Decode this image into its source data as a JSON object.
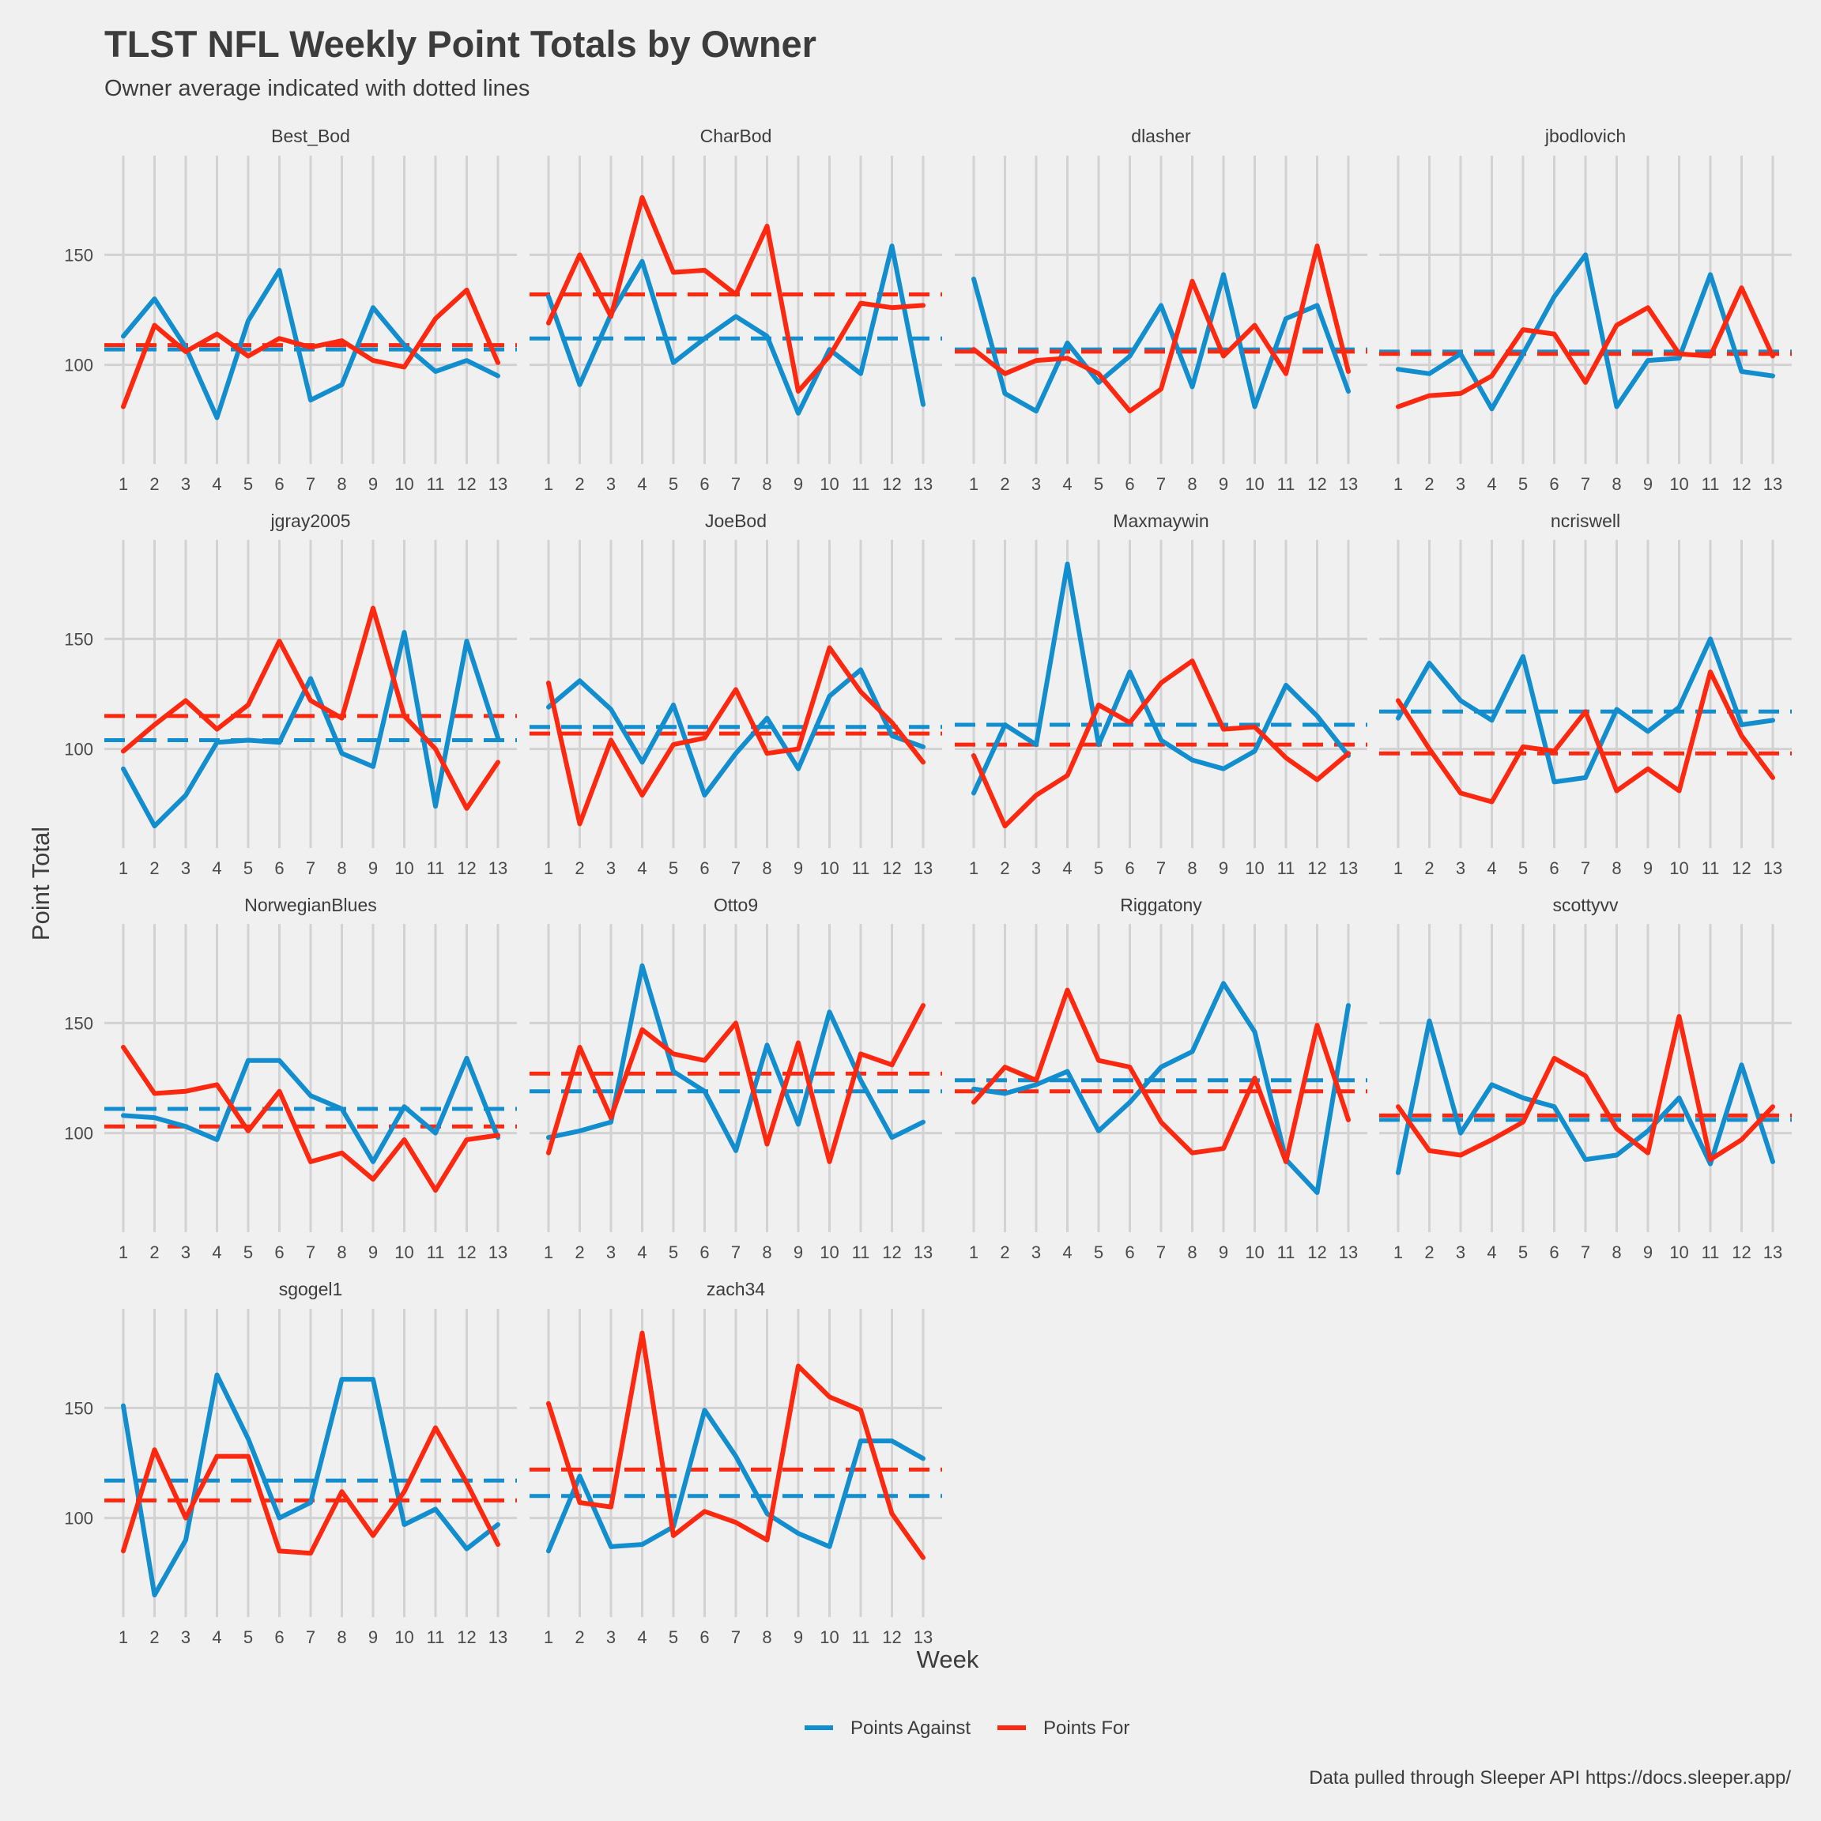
{
  "title": "TLST NFL Weekly Point Totals by Owner",
  "subtitle": "Owner average indicated with dotted lines",
  "caption": "Data pulled through Sleeper API https://docs.sleeper.app/",
  "chart_data": {
    "type": "line",
    "facet_columns": 4,
    "xlabel": "Week",
    "ylabel": "Point Total",
    "x": [
      1,
      2,
      3,
      4,
      5,
      6,
      7,
      8,
      9,
      10,
      11,
      12,
      13
    ],
    "ylim": [
      55,
      195
    ],
    "yticks": [
      100,
      150
    ],
    "grid": true,
    "legend_position": "bottom",
    "series_meta": [
      {
        "key": "against",
        "name": "Points Against",
        "color": "#128dcd"
      },
      {
        "key": "for",
        "name": "Points For",
        "color": "#fc2910"
      }
    ],
    "panels": [
      {
        "owner": "Best_Bod",
        "against": [
          113,
          130,
          108,
          76,
          120,
          143,
          84,
          91,
          126,
          109,
          97,
          102,
          95
        ],
        "for": [
          81,
          118,
          106,
          114,
          104,
          112,
          108,
          111,
          102,
          99,
          121,
          134,
          101
        ],
        "avg_against": 107,
        "avg_for": 109
      },
      {
        "owner": "CharBod",
        "against": [
          131,
          91,
          123,
          147,
          101,
          112,
          122,
          113,
          78,
          107,
          96,
          154,
          82
        ],
        "for": [
          119,
          150,
          122,
          176,
          142,
          143,
          132,
          163,
          88,
          104,
          128,
          126,
          127
        ],
        "avg_against": 112,
        "avg_for": 132
      },
      {
        "owner": "dlasher",
        "against": [
          139,
          87,
          79,
          110,
          92,
          104,
          127,
          90,
          141,
          81,
          121,
          127,
          88
        ],
        "for": [
          107,
          96,
          102,
          103,
          96,
          79,
          89,
          138,
          104,
          118,
          96,
          154,
          97
        ],
        "avg_against": 107,
        "avg_for": 106
      },
      {
        "owner": "jbodlovich",
        "against": [
          98,
          96,
          105,
          80,
          105,
          131,
          150,
          81,
          102,
          103,
          141,
          97,
          95
        ],
        "for": [
          81,
          86,
          87,
          95,
          116,
          114,
          92,
          118,
          126,
          105,
          104,
          135,
          104
        ],
        "avg_against": 106,
        "avg_for": 105
      },
      {
        "owner": "jgray2005",
        "against": [
          91,
          65,
          79,
          103,
          104,
          103,
          132,
          98,
          92,
          153,
          74,
          149,
          105
        ],
        "for": [
          99,
          111,
          122,
          109,
          120,
          149,
          122,
          114,
          164,
          115,
          100,
          73,
          94
        ],
        "avg_against": 104,
        "avg_for": 115
      },
      {
        "owner": "JoeBod",
        "against": [
          119,
          131,
          118,
          94,
          120,
          79,
          98,
          114,
          91,
          124,
          136,
          106,
          101
        ],
        "for": [
          130,
          66,
          104,
          79,
          102,
          105,
          127,
          98,
          100,
          146,
          126,
          112,
          94
        ],
        "avg_against": 110,
        "avg_for": 107
      },
      {
        "owner": "Maxmaywin",
        "against": [
          80,
          111,
          102,
          184,
          102,
          135,
          104,
          95,
          91,
          99,
          129,
          115,
          97
        ],
        "for": [
          97,
          65,
          79,
          88,
          120,
          112,
          130,
          140,
          109,
          110,
          96,
          86,
          98
        ],
        "avg_against": 111,
        "avg_for": 102
      },
      {
        "owner": "ncriswell",
        "against": [
          114,
          139,
          122,
          113,
          142,
          85,
          87,
          118,
          108,
          119,
          150,
          111,
          113
        ],
        "for": [
          122,
          100,
          80,
          76,
          101,
          99,
          117,
          81,
          91,
          81,
          135,
          106,
          87
        ],
        "avg_against": 117,
        "avg_for": 98
      },
      {
        "owner": "NorwegianBlues",
        "against": [
          108,
          107,
          103,
          97,
          133,
          133,
          117,
          111,
          87,
          112,
          100,
          134,
          98
        ],
        "for": [
          139,
          118,
          119,
          122,
          101,
          119,
          87,
          91,
          79,
          97,
          74,
          97,
          99
        ],
        "avg_against": 111,
        "avg_for": 103
      },
      {
        "owner": "Otto9",
        "against": [
          98,
          101,
          105,
          176,
          128,
          119,
          92,
          140,
          104,
          155,
          124,
          98,
          105
        ],
        "for": [
          91,
          139,
          107,
          147,
          136,
          133,
          150,
          95,
          141,
          87,
          136,
          131,
          158
        ],
        "avg_against": 119,
        "avg_for": 127
      },
      {
        "owner": "Riggatony",
        "against": [
          120,
          118,
          122,
          128,
          101,
          114,
          130,
          137,
          168,
          146,
          88,
          73,
          158
        ],
        "for": [
          114,
          130,
          124,
          165,
          133,
          130,
          105,
          91,
          93,
          125,
          87,
          149,
          106
        ],
        "avg_against": 124,
        "avg_for": 119
      },
      {
        "owner": "scottyvv",
        "against": [
          82,
          151,
          100,
          122,
          116,
          112,
          88,
          90,
          101,
          116,
          86,
          131,
          87
        ],
        "for": [
          112,
          92,
          90,
          97,
          105,
          134,
          126,
          102,
          91,
          153,
          88,
          97,
          112
        ],
        "avg_against": 106,
        "avg_for": 108
      },
      {
        "owner": "sgogel1",
        "against": [
          151,
          65,
          90,
          165,
          136,
          100,
          107,
          163,
          163,
          97,
          104,
          86,
          97
        ],
        "for": [
          85,
          131,
          100,
          128,
          128,
          85,
          84,
          112,
          92,
          112,
          141,
          116,
          88
        ],
        "avg_against": 117,
        "avg_for": 108
      },
      {
        "owner": "zach34",
        "against": [
          85,
          119,
          87,
          88,
          96,
          149,
          128,
          102,
          93,
          87,
          135,
          135,
          127
        ],
        "for": [
          152,
          107,
          105,
          184,
          92,
          103,
          98,
          90,
          169,
          155,
          149,
          102,
          82
        ],
        "avg_against": 110,
        "avg_for": 122
      }
    ]
  }
}
